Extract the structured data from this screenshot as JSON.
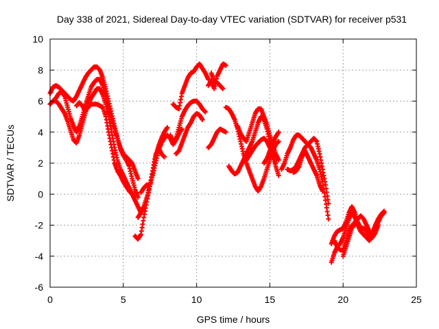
{
  "chart_data": {
    "type": "scatter",
    "title": "Day 338 of 2021, Sidereal Day-to-day VTEC variation (SDTVAR) for receiver p531",
    "xlabel": "GPS time / hours",
    "ylabel": "SDTVAR / TECUs",
    "xlim": [
      0,
      25
    ],
    "ylim": [
      -6,
      10
    ],
    "xticks": [
      0,
      5,
      10,
      15,
      20,
      25
    ],
    "yticks": [
      -6,
      -4,
      -2,
      0,
      2,
      4,
      6,
      8,
      10
    ],
    "grid": true,
    "marker": "plus",
    "color": "#ff0000",
    "series": [
      {
        "x": [
          0.0,
          0.2,
          0.4,
          0.6,
          0.8,
          1.0,
          1.2,
          1.4,
          1.6,
          1.8,
          2.0,
          2.2,
          2.4,
          2.6,
          2.8,
          3.0,
          3.2,
          3.4,
          3.6,
          3.8,
          4.0,
          4.2,
          4.4,
          4.6,
          4.8,
          5.0,
          5.2,
          5.4,
          5.6,
          5.8,
          6.0
        ],
        "y": [
          6.5,
          6.9,
          7.0,
          6.9,
          6.7,
          6.5,
          6.3,
          6.1,
          6.0,
          6.3,
          6.7,
          7.1,
          7.5,
          7.8,
          8.0,
          8.2,
          8.2,
          8.0,
          7.5,
          6.8,
          6.0,
          5.2,
          4.4,
          3.6,
          2.9,
          2.5,
          2.2,
          1.8,
          1.0,
          0.3,
          -0.2
        ]
      },
      {
        "x": [
          0.2,
          0.4,
          0.6,
          0.8,
          1.0,
          1.2,
          1.4,
          1.6,
          1.8,
          2.0,
          2.2,
          2.4,
          2.6,
          2.8,
          3.0,
          3.2,
          3.4,
          3.6,
          3.8,
          4.0,
          4.2,
          4.4,
          4.6,
          4.8,
          5.0,
          5.2,
          5.4,
          5.6,
          5.8,
          6.0
        ],
        "y": [
          6.0,
          6.2,
          6.5,
          6.6,
          6.3,
          5.6,
          4.9,
          4.4,
          4.0,
          4.4,
          5.0,
          5.7,
          6.3,
          6.9,
          7.2,
          7.4,
          7.4,
          7.0,
          6.3,
          5.5,
          4.8,
          4.2,
          3.6,
          3.0,
          2.6,
          2.4,
          2.2,
          2.0,
          1.5,
          1.0
        ]
      },
      {
        "x": [
          0.0,
          0.2,
          0.4,
          0.6,
          0.8,
          1.0,
          1.2,
          1.4,
          1.6,
          1.8,
          2.0,
          2.2,
          2.4,
          2.6,
          2.8,
          3.0,
          3.2,
          3.4,
          3.6,
          3.8,
          4.0,
          4.2,
          4.4,
          4.6,
          4.8,
          5.0,
          5.2,
          5.4,
          5.6,
          5.8
        ],
        "y": [
          5.8,
          6.0,
          6.0,
          5.8,
          5.5,
          5.2,
          4.7,
          4.1,
          3.5,
          3.3,
          3.8,
          4.5,
          5.2,
          5.8,
          6.2,
          6.5,
          6.8,
          6.8,
          6.4,
          5.8,
          5.0,
          4.0,
          3.0,
          2.2,
          1.6,
          1.2,
          0.8,
          0.4,
          0.0,
          -0.4
        ]
      },
      {
        "x": [
          1.8,
          2.0,
          2.2,
          2.4,
          2.6,
          2.8,
          3.0,
          3.2,
          3.4,
          3.6,
          3.8,
          4.0,
          4.2,
          4.4,
          4.6,
          4.8,
          5.0,
          5.2,
          5.4,
          5.6,
          5.8,
          6.0,
          6.2
        ],
        "y": [
          5.7,
          5.9,
          5.7,
          5.4,
          5.6,
          5.8,
          5.8,
          5.8,
          5.7,
          5.6,
          5.0,
          4.0,
          3.0,
          2.0,
          1.5,
          1.2,
          0.8,
          0.5,
          0.2,
          0.0,
          -0.4,
          -0.8,
          -1.2
        ]
      },
      {
        "x": [
          5.8,
          6.0,
          6.2,
          6.4,
          6.6,
          6.8,
          7.0,
          7.2,
          7.4,
          7.6,
          7.8,
          8.0
        ],
        "y": [
          -2.7,
          -2.9,
          -2.6,
          -1.5,
          -0.5,
          0.5,
          1.5,
          2.4,
          3.1,
          3.6,
          4.0,
          4.3
        ]
      },
      {
        "x": [
          6.0,
          6.2,
          6.4,
          6.6,
          6.8,
          7.0,
          7.2,
          7.4,
          7.6,
          7.8,
          8.0,
          8.2,
          8.4,
          8.6,
          8.8,
          9.0
        ],
        "y": [
          -1.5,
          -1.2,
          -0.8,
          -0.2,
          0.5,
          1.2,
          2.0,
          2.8,
          3.3,
          3.6,
          3.8,
          3.6,
          3.2,
          3.5,
          3.9,
          4.2
        ]
      },
      {
        "x": [
          6.2,
          6.4,
          6.6,
          6.8,
          7.0,
          7.2,
          7.4,
          7.6,
          7.8
        ],
        "y": [
          0.1,
          0.4,
          0.6,
          0.5,
          1.5,
          2.5,
          3.0,
          2.6,
          2.4
        ]
      },
      {
        "x": [
          8.2,
          8.4,
          8.6,
          8.8,
          9.0,
          9.2,
          9.4,
          9.6,
          9.8,
          10.0,
          10.2,
          10.4,
          10.6
        ],
        "y": [
          3.8,
          3.4,
          3.6,
          4.3,
          5.0,
          5.4,
          5.7,
          5.9,
          6.0,
          6.0,
          5.8,
          5.5,
          5.3
        ]
      },
      {
        "x": [
          8.4,
          8.6,
          8.8,
          9.0,
          9.2,
          9.4,
          9.6,
          9.8,
          10.0,
          10.2,
          10.4,
          10.6,
          10.8
        ],
        "y": [
          5.8,
          5.6,
          5.5,
          6.5,
          7.0,
          7.5,
          7.8,
          7.9,
          8.2,
          8.4,
          8.1,
          7.8,
          7.4
        ]
      },
      {
        "x": [
          8.6,
          8.8,
          9.0,
          9.2,
          9.4,
          9.6,
          9.8,
          10.0,
          10.2,
          10.4
        ],
        "y": [
          2.6,
          2.8,
          3.3,
          3.8,
          4.3,
          4.6,
          5.0,
          5.2,
          5.1,
          4.8
        ]
      },
      {
        "x": [
          10.8,
          11.0,
          11.2,
          11.4,
          11.6,
          11.8,
          12.0
        ],
        "y": [
          7.0,
          7.3,
          6.8,
          7.6,
          8.0,
          8.4,
          8.3
        ]
      },
      {
        "x": [
          11.0,
          11.2,
          11.4,
          11.6,
          11.8
        ],
        "y": [
          7.8,
          7.3,
          7.2,
          7.0,
          6.8
        ]
      },
      {
        "x": [
          10.8,
          11.0,
          11.2,
          11.4,
          11.6,
          11.8,
          12.0
        ],
        "y": [
          3.0,
          3.2,
          3.6,
          4.0,
          4.2,
          4.1,
          4.0
        ]
      },
      {
        "x": [
          12.0,
          12.2,
          12.4,
          12.6,
          12.8,
          13.0,
          13.2,
          13.4,
          13.6,
          13.8,
          14.0,
          14.2,
          14.4,
          14.6,
          14.8,
          15.0,
          15.2,
          15.4,
          15.6
        ],
        "y": [
          5.6,
          5.5,
          5.2,
          4.8,
          4.2,
          3.4,
          2.6,
          2.0,
          1.5,
          1.0,
          0.5,
          0.2,
          0.5,
          1.0,
          1.6,
          2.2,
          2.8,
          3.2,
          3.4
        ]
      },
      {
        "x": [
          12.2,
          12.4,
          12.6,
          12.8,
          13.0,
          13.2,
          13.4,
          13.6,
          13.8,
          14.0,
          14.2,
          14.4,
          14.6,
          14.8,
          15.0,
          15.2,
          15.4
        ],
        "y": [
          1.8,
          1.5,
          1.3,
          1.4,
          1.8,
          2.2,
          2.6,
          3.0,
          3.4,
          4.0,
          4.6,
          5.0,
          4.8,
          4.2,
          3.4,
          2.6,
          2.0
        ]
      },
      {
        "x": [
          12.8,
          13.0,
          13.2,
          13.4,
          13.6,
          13.8,
          14.0,
          14.2,
          14.4,
          14.6,
          14.8,
          15.0,
          15.2,
          15.4,
          15.6
        ],
        "y": [
          4.4,
          3.9,
          3.6,
          3.4,
          4.0,
          4.6,
          5.2,
          5.5,
          5.5,
          5.0,
          4.5,
          3.8,
          3.2,
          2.6,
          2.2
        ]
      },
      {
        "x": [
          13.4,
          13.6,
          13.8,
          14.0,
          14.2,
          14.4,
          14.6,
          14.8,
          15.0,
          15.2,
          15.4,
          15.6
        ],
        "y": [
          2.2,
          2.5,
          2.8,
          3.1,
          3.3,
          3.5,
          3.6,
          3.4,
          3.0,
          2.5,
          1.8,
          1.2
        ]
      },
      {
        "x": [
          14.6,
          14.8,
          15.0,
          15.2,
          15.4,
          15.6
        ],
        "y": [
          2.0,
          2.3,
          2.8,
          3.3,
          3.7,
          4.0
        ]
      },
      {
        "x": [
          15.8,
          16.0,
          16.2,
          16.4,
          16.6,
          16.8,
          17.0,
          17.2,
          17.4,
          17.6,
          17.8,
          18.0,
          18.2,
          18.4,
          18.6,
          18.8,
          19.0
        ],
        "y": [
          1.6,
          2.0,
          2.6,
          3.0,
          3.5,
          3.8,
          3.8,
          3.6,
          3.4,
          3.2,
          3.4,
          3.6,
          3.4,
          2.6,
          1.6,
          0.6,
          -0.6
        ]
      },
      {
        "x": [
          16.2,
          16.4,
          16.6,
          16.8,
          17.0,
          17.2,
          17.4,
          17.6,
          17.8,
          18.0,
          18.2,
          18.4,
          18.6,
          18.8,
          19.0
        ],
        "y": [
          1.6,
          1.5,
          1.6,
          1.8,
          2.2,
          2.6,
          3.0,
          3.2,
          3.0,
          2.6,
          2.2,
          1.6,
          0.8,
          -0.4,
          -1.6
        ]
      },
      {
        "x": [
          16.6,
          16.8,
          17.0,
          17.2,
          17.4,
          17.6,
          17.8,
          18.0,
          18.2,
          18.4,
          18.6
        ],
        "y": [
          1.4,
          1.5,
          1.8,
          2.4,
          2.8,
          2.4,
          2.0,
          1.6,
          1.2,
          0.6,
          0.2
        ]
      },
      {
        "x": [
          19.2,
          19.4,
          19.6,
          19.8,
          20.0,
          20.2,
          20.4,
          20.6,
          20.8,
          21.0,
          21.2,
          21.4,
          21.6,
          21.8,
          22.0,
          22.2,
          22.4,
          22.6,
          22.8
        ],
        "y": [
          -3.2,
          -2.7,
          -2.4,
          -2.3,
          -2.2,
          -1.8,
          -1.2,
          -0.8,
          -1.2,
          -1.8,
          -2.2,
          -2.2,
          -2.4,
          -2.7,
          -2.5,
          -2.0,
          -1.6,
          -1.3,
          -1.1
        ]
      },
      {
        "x": [
          19.2,
          19.4,
          19.6,
          19.8,
          20.0,
          20.2,
          20.4,
          20.6,
          20.8,
          21.0,
          21.2,
          21.4,
          21.6,
          21.8,
          22.0,
          22.2,
          22.4,
          22.6,
          22.8
        ],
        "y": [
          -4.4,
          -3.8,
          -3.4,
          -3.2,
          -2.8,
          -2.2,
          -1.6,
          -1.2,
          -1.5,
          -2.0,
          -2.4,
          -2.6,
          -2.8,
          -3.0,
          -2.6,
          -2.2,
          -1.8,
          -1.4,
          -1.2
        ]
      },
      {
        "x": [
          19.4,
          19.6,
          19.8,
          20.0,
          20.2,
          20.4,
          20.6,
          20.8,
          21.0,
          21.2,
          21.4,
          21.6,
          21.8,
          22.0,
          22.2,
          22.4
        ],
        "y": [
          -3.0,
          -3.4,
          -3.6,
          -3.6,
          -3.0,
          -2.4,
          -2.0,
          -2.0,
          -1.6,
          -1.4,
          -1.6,
          -2.0,
          -2.4,
          -2.8,
          -2.5,
          -2.0
        ]
      },
      {
        "x": [
          20.0,
          20.2,
          20.4,
          20.6,
          20.8,
          21.0
        ],
        "y": [
          -4.0,
          -3.4,
          -2.8,
          -2.2,
          -1.8,
          -1.6
        ]
      }
    ]
  }
}
